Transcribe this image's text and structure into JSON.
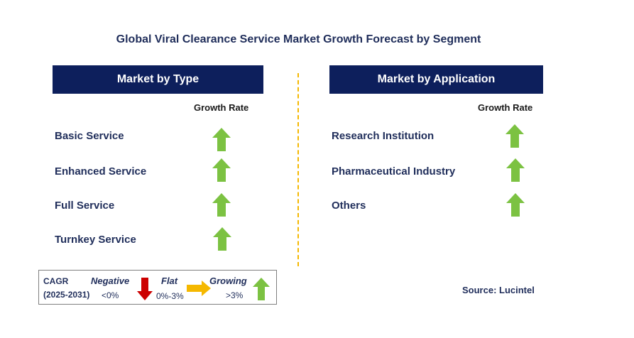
{
  "title": "Global Viral Clearance Service Market Growth Forecast by Segment",
  "left_panel": {
    "header": "Market by Type",
    "growth_label": "Growth Rate",
    "items": [
      {
        "label": "Basic Service",
        "trend": "growing"
      },
      {
        "label": "Enhanced Service",
        "trend": "growing"
      },
      {
        "label": "Full Service",
        "trend": "growing"
      },
      {
        "label": "Turnkey Service",
        "trend": "growing"
      }
    ]
  },
  "right_panel": {
    "header": "Market by Application",
    "growth_label": "Growth Rate",
    "items": [
      {
        "label": "Research Institution",
        "trend": "growing"
      },
      {
        "label": "Pharmaceutical Industry",
        "trend": "growing"
      },
      {
        "label": "Others",
        "trend": "growing"
      }
    ]
  },
  "legend": {
    "cagr_label": "CAGR",
    "period": "(2025-2031)",
    "negative_label": "Negative",
    "negative_range": "<0%",
    "flat_label": "Flat",
    "flat_range": "0%-3%",
    "growing_label": "Growing",
    "growing_range": ">3%"
  },
  "source": "Source: Lucintel",
  "colors": {
    "header_bg": "#0d1f5c",
    "text": "#1f2d5a",
    "up_arrow": "#7cc242",
    "down_arrow": "#cc0000",
    "flat_arrow": "#f5b800",
    "divider": "#f5b800"
  }
}
